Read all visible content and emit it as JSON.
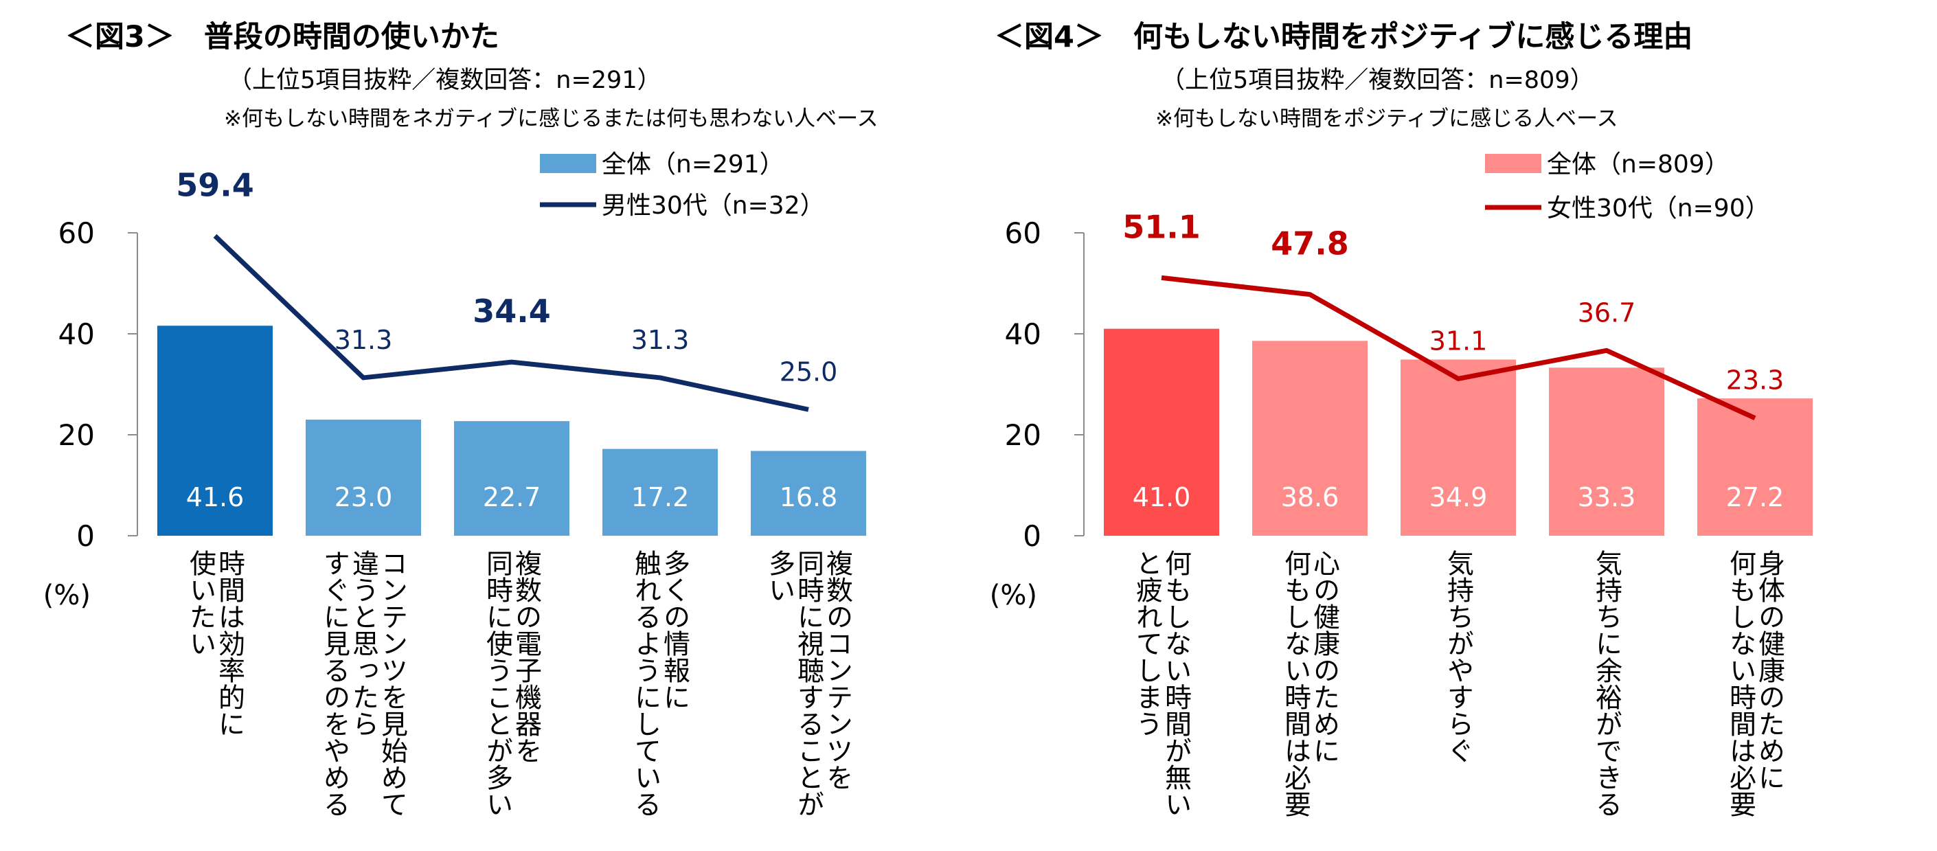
{
  "chart_data": [
    {
      "type": "bar",
      "title": "＜図3＞　普段の時間の使いかた",
      "subtitle": "（上位5項目抜粋／複数回答：n=291）",
      "note": "※何もしない時間をネガティブに感じるまたは何も思わない人ベース",
      "ylabel": "(%)",
      "ylim": [
        0,
        60
      ],
      "yticks": [
        "0",
        "20",
        "40",
        "60"
      ],
      "categories": [
        [
          "時間は効率的に",
          "使いたい"
        ],
        [
          "コンテンツを見始めて",
          "違うと思ったら",
          "すぐに見るのをやめる"
        ],
        [
          "複数の電子機器を",
          "同時に使うことが多い"
        ],
        [
          "多くの情報に",
          "触れるようにしている"
        ],
        [
          "複数のコンテンツを",
          "同時に視聴することが",
          "多い"
        ]
      ],
      "series": [
        {
          "name": "全体（n=291）",
          "kind": "bar",
          "values": [
            41.6,
            23.0,
            22.7,
            17.2,
            16.8
          ],
          "labels": [
            "41.6",
            "23.0",
            "22.7",
            "17.2",
            "16.8"
          ]
        },
        {
          "name": "男性30代（n=32）",
          "kind": "line",
          "values": [
            59.4,
            31.3,
            34.4,
            31.3,
            25.0
          ],
          "labels": [
            "59.4",
            "31.3",
            "34.4",
            "31.3",
            "25.0"
          ],
          "emphasized": [
            true,
            false,
            true,
            false,
            false
          ]
        }
      ],
      "colors": {
        "bar": "#5ba3d6",
        "bar_highlight": "#0d6db8",
        "line": "#0f2b66",
        "label": "#0f2b66"
      }
    },
    {
      "type": "bar",
      "title": "＜図4＞　何もしない時間をポジティブに感じる理由",
      "subtitle": "（上位5項目抜粋／複数回答：n=809）",
      "note": "※何もしない時間をポジティブに感じる人ベース",
      "ylabel": "(%)",
      "ylim": [
        0,
        60
      ],
      "yticks": [
        "0",
        "20",
        "40",
        "60"
      ],
      "categories": [
        [
          "何もしない時間が無い",
          "と疲れてしまう"
        ],
        [
          "心の健康のために",
          "何もしない時間は必要"
        ],
        [
          "気持ちがやすらぐ"
        ],
        [
          "気持ちに余裕ができる"
        ],
        [
          "身体の健康のために",
          "何もしない時間は必要"
        ]
      ],
      "series": [
        {
          "name": "全体（n=809）",
          "kind": "bar",
          "values": [
            41.0,
            38.6,
            34.9,
            33.3,
            27.2
          ],
          "labels": [
            "41.0",
            "38.6",
            "34.9",
            "33.3",
            "27.2"
          ]
        },
        {
          "name": "女性30代（n=90）",
          "kind": "line",
          "values": [
            51.1,
            47.8,
            31.1,
            36.7,
            23.3
          ],
          "labels": [
            "51.1",
            "47.8",
            "31.1",
            "36.7",
            "23.3"
          ],
          "emphasized": [
            true,
            true,
            false,
            false,
            false
          ]
        }
      ],
      "colors": {
        "bar": "#ff8b8b",
        "bar_highlight": "#ff4d4d",
        "line": "#c00000",
        "label": "#c00000"
      }
    }
  ]
}
